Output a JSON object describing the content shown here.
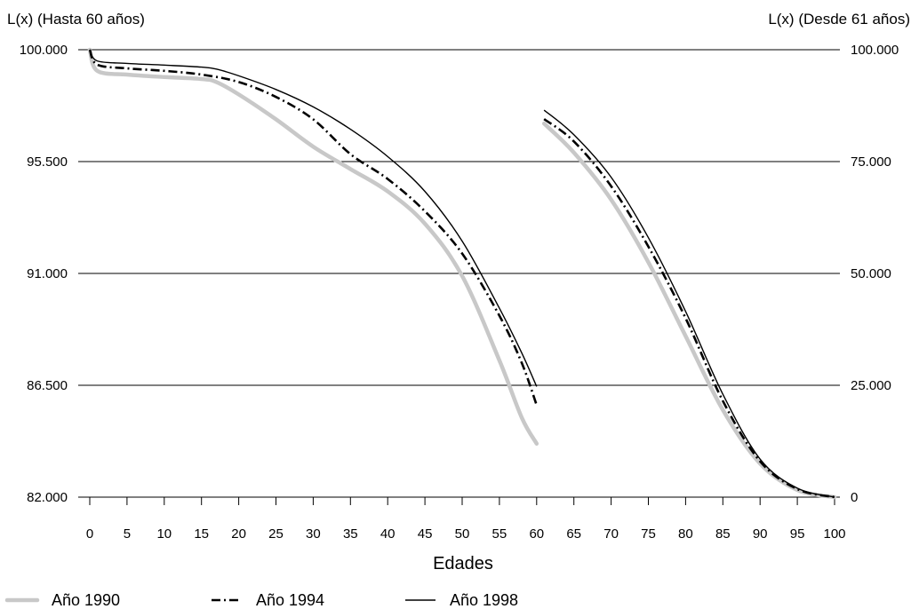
{
  "chart_data": {
    "type": "line",
    "left_axis_label": "L(x) (Hasta 60 años)",
    "right_axis_label": "L(x) (Desde 61 años)",
    "xlabel": "Edades",
    "x_ticks": [
      0,
      5,
      10,
      15,
      20,
      25,
      30,
      35,
      40,
      45,
      50,
      55,
      60,
      65,
      70,
      75,
      80,
      85,
      90,
      95,
      100
    ],
    "left_ticks": [
      "100.000",
      "95.500",
      "91.000",
      "86.500",
      "82.000"
    ],
    "right_ticks": [
      "100.000",
      "75.000",
      "50.000",
      "25.000",
      "0"
    ],
    "left_ylim": [
      82000,
      100000
    ],
    "right_ylim": [
      0,
      100000
    ],
    "grid": true,
    "legend_position": "bottom-left",
    "series": [
      {
        "name": "Año 1990",
        "color": "#c8c8c8",
        "style": "solid-thick",
        "left_segment": {
          "x": [
            0,
            1,
            5,
            10,
            15,
            17,
            20,
            25,
            30,
            35,
            40,
            45,
            50,
            55,
            58,
            60
          ],
          "y": [
            100000,
            99150,
            99000,
            98900,
            98820,
            98700,
            98200,
            97200,
            96100,
            95200,
            94300,
            93000,
            90900,
            87500,
            85200,
            84150
          ]
        },
        "right_segment": {
          "x": [
            61,
            65,
            70,
            75,
            80,
            85,
            90,
            95,
            100
          ],
          "y": [
            83500,
            77000,
            66500,
            52500,
            36000,
            19500,
            7500,
            1600,
            0
          ]
        }
      },
      {
        "name": "Año 1994",
        "color": "#000000",
        "style": "dash-dot",
        "left_segment": {
          "x": [
            0,
            1,
            5,
            10,
            15,
            20,
            25,
            30,
            35,
            40,
            45,
            50,
            55,
            58,
            60
          ],
          "y": [
            100000,
            99400,
            99250,
            99150,
            99000,
            98700,
            98100,
            97200,
            95800,
            94800,
            93500,
            91800,
            89300,
            87400,
            85700
          ]
        },
        "right_segment": {
          "x": [
            61,
            65,
            70,
            75,
            80,
            85,
            90,
            95,
            100
          ],
          "y": [
            84500,
            79500,
            69500,
            56000,
            40000,
            21500,
            8000,
            1800,
            0
          ]
        }
      },
      {
        "name": "Año 1998",
        "color": "#000000",
        "style": "solid-thin",
        "left_segment": {
          "x": [
            0,
            1,
            5,
            10,
            15,
            17,
            20,
            25,
            30,
            35,
            40,
            45,
            50,
            55,
            58,
            60
          ],
          "y": [
            100000,
            99550,
            99450,
            99380,
            99300,
            99220,
            98950,
            98400,
            97700,
            96800,
            95700,
            94300,
            92300,
            89600,
            87800,
            86450
          ]
        },
        "right_segment": {
          "x": [
            61,
            65,
            70,
            75,
            80,
            85,
            90,
            95,
            100
          ],
          "y": [
            86500,
            81000,
            71500,
            58000,
            41500,
            23000,
            8500,
            2000,
            0
          ]
        }
      }
    ]
  }
}
